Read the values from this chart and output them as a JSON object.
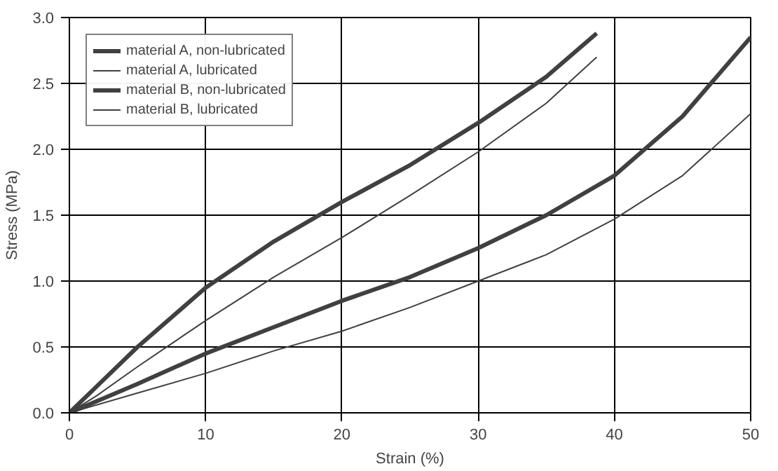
{
  "chart_data": {
    "type": "line",
    "xlabel": "Strain (%)",
    "ylabel": "Stress (MPa)",
    "xlim": [
      0,
      50
    ],
    "ylim": [
      0,
      3.0
    ],
    "xticks": [
      0,
      10,
      20,
      30,
      40,
      50
    ],
    "yticks": [
      {
        "value": 0,
        "label": "0.0"
      },
      {
        "value": 0.5,
        "label": "0.5"
      },
      {
        "value": 1,
        "label": "1.0"
      },
      {
        "value": 1.5,
        "label": "1.5"
      },
      {
        "value": 2,
        "label": "2.0"
      },
      {
        "value": 2.5,
        "label": "2.5"
      },
      {
        "value": 3,
        "label": "3.0"
      }
    ],
    "grid": true,
    "legend": "top left",
    "marker": "none",
    "line_style": "solid",
    "series": [
      {
        "name": "material A, non-lubricated",
        "color": "#404040",
        "x": [
          0,
          2,
          5,
          10,
          15,
          20,
          25,
          30,
          35,
          38.7
        ],
        "values": [
          0,
          0.2,
          0.5,
          0.95,
          1.3,
          1.6,
          1.88,
          2.2,
          2.55,
          2.88
        ]
      },
      {
        "name": "material A, lubricated",
        "color": "#404040",
        "x": [
          0,
          2,
          5,
          10,
          15,
          20,
          25,
          30,
          35,
          38.7
        ],
        "values": [
          0,
          0.13,
          0.35,
          0.7,
          1.03,
          1.33,
          1.65,
          1.98,
          2.35,
          2.7
        ]
      },
      {
        "name": "material B, non-lubricated",
        "color": "#404040",
        "x": [
          0,
          5,
          10,
          15,
          20,
          25,
          30,
          35,
          40,
          45,
          50
        ],
        "values": [
          0,
          0.22,
          0.45,
          0.65,
          0.85,
          1.03,
          1.25,
          1.5,
          1.8,
          2.25,
          2.85
        ]
      },
      {
        "name": "material B, lubricated",
        "color": "#404040",
        "x": [
          0,
          5,
          10,
          15,
          20,
          25,
          30,
          35,
          40,
          45,
          50
        ],
        "values": [
          0,
          0.15,
          0.3,
          0.47,
          0.62,
          0.8,
          1.0,
          1.2,
          1.47,
          1.8,
          2.27
        ]
      }
    ]
  }
}
